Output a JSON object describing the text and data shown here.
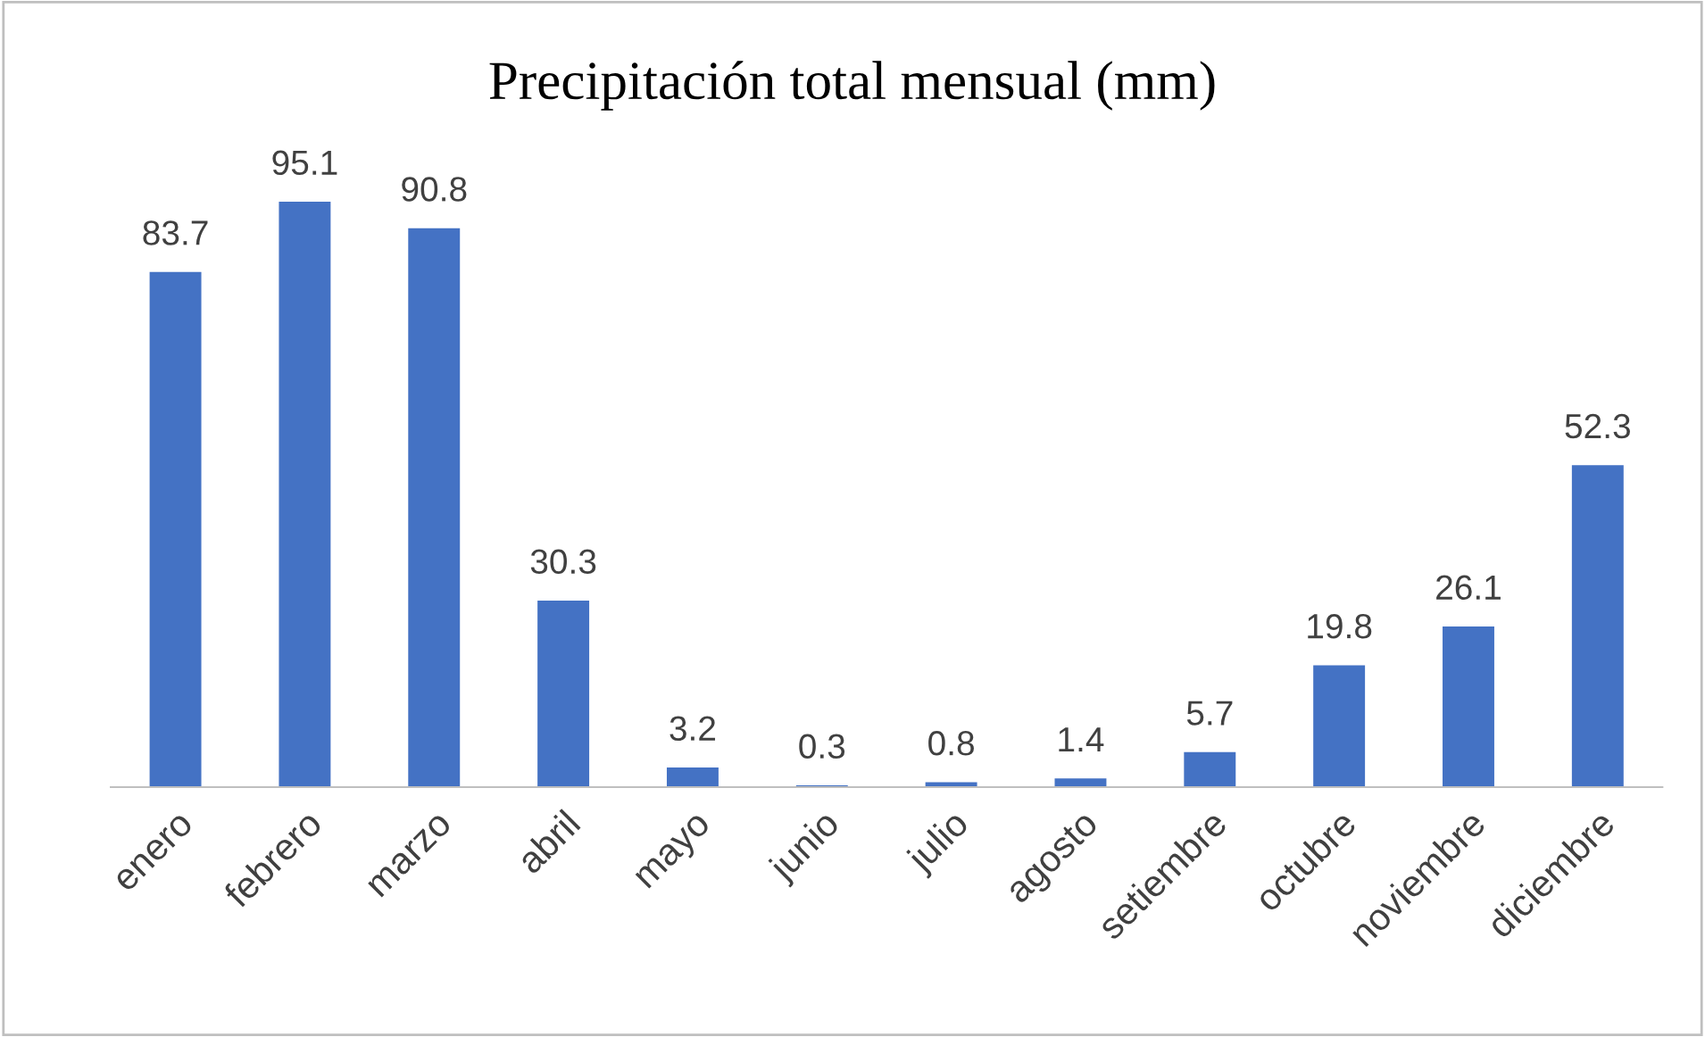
{
  "chart_data": {
    "type": "bar",
    "title": "Precipitación total mensual (mm)",
    "categories": [
      "enero",
      "febrero",
      "marzo",
      "abril",
      "mayo",
      "junio",
      "julio",
      "agosto",
      "setiembre",
      "octubre",
      "noviembre",
      "diciembre"
    ],
    "values": [
      83.7,
      95.1,
      90.8,
      30.3,
      3.2,
      0.3,
      0.8,
      1.4,
      5.7,
      19.8,
      26.1,
      52.3
    ],
    "color": "#4472c4",
    "data_labels": true
  }
}
